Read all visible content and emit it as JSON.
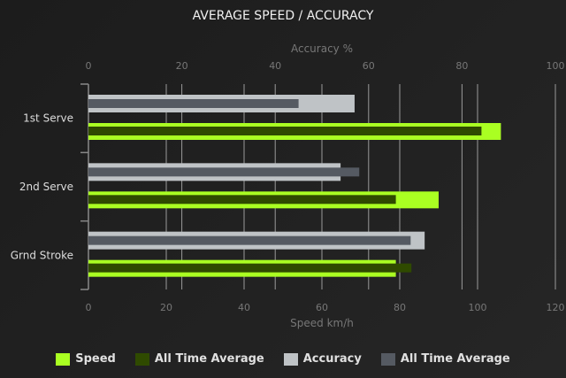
{
  "chart_data": {
    "type": "bar",
    "orientation": "horizontal",
    "title": "AVERAGE SPEED / ACCURACY",
    "categories": [
      "1st Serve",
      "2nd Serve",
      "Grnd Stroke"
    ],
    "x_bottom": {
      "label": "Speed km/h",
      "range": [
        0,
        120
      ],
      "ticks": [
        0,
        20,
        40,
        60,
        80,
        100,
        120
      ]
    },
    "x_top": {
      "label": "Accuracy %",
      "range": [
        0,
        100
      ],
      "ticks": [
        0,
        20,
        40,
        60,
        80,
        100
      ]
    },
    "grid": true,
    "legend_placement": "bottom",
    "series": [
      {
        "name": "Speed",
        "axis": "bottom",
        "values": [
          106,
          90,
          79
        ],
        "color": "#aaff22"
      },
      {
        "name": "All Time Average",
        "axis": "bottom",
        "values": [
          101,
          79,
          83
        ],
        "color": "#2f4a00"
      },
      {
        "name": "Accuracy",
        "axis": "top",
        "values": [
          57,
          54,
          72
        ],
        "color": "#bfc3c6"
      },
      {
        "name": "All Time Average",
        "axis": "top",
        "values": [
          45,
          58,
          69
        ],
        "color": "#555a62"
      }
    ]
  }
}
